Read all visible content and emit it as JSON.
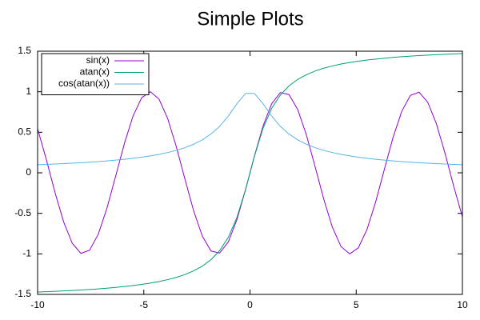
{
  "chart_data": {
    "type": "line",
    "title": "Simple Plots",
    "x": [
      -10,
      -9.5918,
      -9.1837,
      -8.7755,
      -8.3673,
      -7.9592,
      -7.551,
      -7.1429,
      -6.7347,
      -6.3265,
      -5.9184,
      -5.5102,
      -5.102,
      -4.6939,
      -4.2857,
      -3.8776,
      -3.4694,
      -3.0612,
      -2.6531,
      -2.2449,
      -1.8367,
      -1.4286,
      -1.0204,
      -0.6122,
      -0.2041,
      0.2041,
      0.6122,
      1.0204,
      1.4286,
      1.8367,
      2.2449,
      2.6531,
      3.0612,
      3.4694,
      3.8776,
      4.2857,
      4.6939,
      5.102,
      5.5102,
      5.9184,
      6.3265,
      6.7347,
      7.1429,
      7.551,
      7.9592,
      8.3673,
      8.7755,
      9.1837,
      9.5918,
      10
    ],
    "series": [
      {
        "name": "sin(x)",
        "color": "#9400d3",
        "values": [
          0.544,
          0.166,
          -0.239,
          -0.605,
          -0.871,
          -0.994,
          -0.955,
          -0.757,
          -0.436,
          -0.043,
          0.357,
          0.698,
          0.925,
          1.0,
          0.91,
          0.671,
          0.322,
          -0.08,
          -0.469,
          -0.781,
          -0.965,
          -0.99,
          -0.852,
          -0.575,
          -0.203,
          0.203,
          0.575,
          0.852,
          0.99,
          0.965,
          0.781,
          0.469,
          0.08,
          -0.322,
          -0.671,
          -0.91,
          -1.0,
          -0.925,
          -0.698,
          -0.357,
          0.043,
          0.436,
          0.757,
          0.955,
          0.994,
          0.871,
          0.605,
          0.239,
          -0.166,
          -0.544
        ]
      },
      {
        "name": "atan(x)",
        "color": "#009e73",
        "values": [
          -1.471,
          -1.467,
          -1.462,
          -1.457,
          -1.452,
          -1.446,
          -1.439,
          -1.432,
          -1.423,
          -1.414,
          -1.403,
          -1.391,
          -1.377,
          -1.361,
          -1.342,
          -1.318,
          -1.29,
          -1.255,
          -1.21,
          -1.152,
          -1.072,
          -0.96,
          -0.796,
          -0.549,
          -0.201,
          0.201,
          0.549,
          0.796,
          0.96,
          1.072,
          1.152,
          1.21,
          1.255,
          1.29,
          1.318,
          1.342,
          1.361,
          1.377,
          1.391,
          1.403,
          1.414,
          1.423,
          1.432,
          1.439,
          1.446,
          1.452,
          1.457,
          1.462,
          1.467,
          1.471
        ]
      },
      {
        "name": "cos(atan(x))",
        "color": "#56b4e9",
        "values": [
          0.0995,
          0.1037,
          0.1083,
          0.1132,
          0.1187,
          0.1247,
          0.1313,
          0.1386,
          0.1469,
          0.1561,
          0.1666,
          0.1786,
          0.1923,
          0.2084,
          0.2272,
          0.2497,
          0.2769,
          0.3105,
          0.3527,
          0.4069,
          0.4782,
          0.5734,
          0.7,
          0.8529,
          0.9798,
          0.9798,
          0.8529,
          0.7,
          0.5734,
          0.4782,
          0.4069,
          0.3527,
          0.3105,
          0.2769,
          0.2497,
          0.2272,
          0.2084,
          0.1923,
          0.1786,
          0.1666,
          0.1561,
          0.1469,
          0.1386,
          0.1313,
          0.1247,
          0.1187,
          0.1132,
          0.1083,
          0.1037,
          0.0995
        ]
      }
    ],
    "xlim": [
      -10,
      10
    ],
    "xticks": [
      -10,
      -5,
      0,
      5,
      10
    ],
    "ylim": [
      -1.5,
      1.5
    ],
    "yticks": [
      -1.5,
      -1,
      -0.5,
      0,
      0.5,
      1,
      1.5
    ],
    "legend": "top-left"
  }
}
